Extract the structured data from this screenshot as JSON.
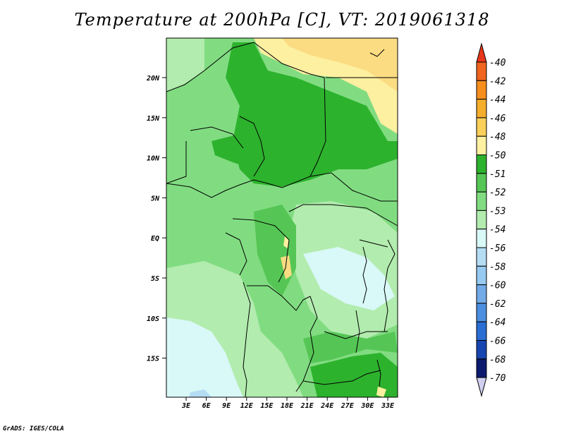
{
  "title": "Temperature at 200hPa [C], VT: 2019061318",
  "credit": "GrADS: IGES/COLA",
  "axes": {
    "lat_ticks": [
      "20N",
      "15N",
      "10N",
      "5N",
      "EQ",
      "5S",
      "10S",
      "15S"
    ],
    "lon_ticks": [
      "3E",
      "6E",
      "9E",
      "12E",
      "15E",
      "18E",
      "21E",
      "24E",
      "27E",
      "30E",
      "33E"
    ]
  },
  "colorbar": {
    "labels": [
      "-40",
      "-42",
      "-44",
      "-46",
      "-48",
      "-50",
      "-51",
      "-52",
      "-53",
      "-54",
      "-56",
      "-58",
      "-60",
      "-62",
      "-64",
      "-66",
      "-68",
      "-70"
    ],
    "colors": [
      "#e8361a",
      "#f0641e",
      "#f78f1e",
      "#f5ad2c",
      "#fbd05a",
      "#fdf0a0",
      "#2db22d",
      "#55c655",
      "#81dc81",
      "#b2ecae",
      "#d9f8f8",
      "#b4ddf4",
      "#96caf0",
      "#73abe8",
      "#4c8fe0",
      "#2a6ed4",
      "#1846b0",
      "#0c1a6e",
      "#cfcfef"
    ]
  },
  "map_colors": {
    "c51": "#fdf0a0",
    "c50": "#fbdc82",
    "c52": "#2db22d",
    "c53": "#55c655",
    "c54": "#81dc81",
    "c56": "#b2ecae",
    "c58": "#d9f8f8",
    "c60": "#b4ddf4"
  }
}
